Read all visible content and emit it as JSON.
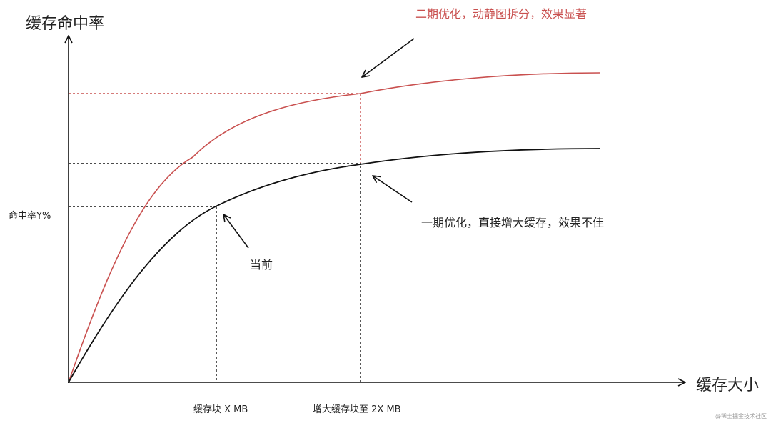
{
  "chart_data": {
    "type": "line",
    "title": "",
    "xlabel": "缓存大小",
    "ylabel": "缓存命中率",
    "grid": false,
    "legend": "none",
    "series": [
      {
        "name": "",
        "color": "#c9504f"
      },
      {
        "name": "",
        "color": "#111111"
      }
    ],
    "y_tick_label": "命中率Y%",
    "x_tick_labels": [
      "缓存块 X MB",
      "增大缓存块至 2X MB"
    ],
    "annotations": [
      {
        "text": "二期优化，动静图拆分，效果显著",
        "color": "#c9504f"
      },
      {
        "text": "一期优化，直接增大缓存，效果不佳",
        "color": "#222222"
      },
      {
        "text": "当前",
        "color": "#222222"
      }
    ]
  },
  "watermark": "@稀土掘金技术社区"
}
